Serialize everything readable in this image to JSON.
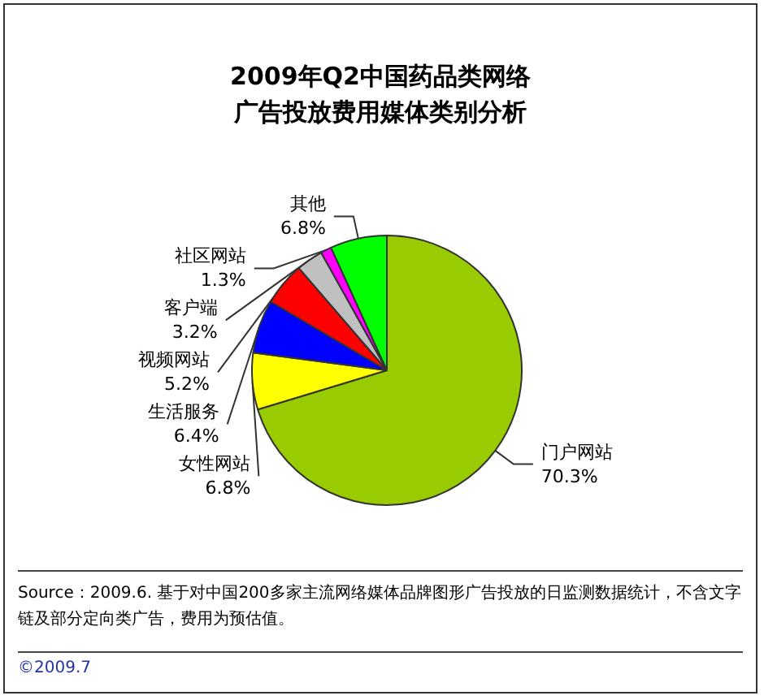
{
  "chart_data": {
    "type": "pie",
    "title": "2009年Q2中国药品类网络广告投放费用媒体类别分析",
    "categories": [
      "门户网站",
      "女性网站",
      "生活服务",
      "视频网站",
      "客户端",
      "社区网站",
      "其他"
    ],
    "values": [
      70.3,
      6.8,
      6.4,
      5.2,
      3.2,
      1.3,
      6.8
    ],
    "value_labels": [
      "70.3%",
      "6.8%",
      "6.4%",
      "5.2%",
      "3.2%",
      "1.3%",
      "6.8%"
    ],
    "colors": [
      "#99cc00",
      "#ffff00",
      "#0000ff",
      "#ff0000",
      "#c0c0c0",
      "#ff00ff",
      "#00ff00"
    ],
    "legend": false,
    "annotations": [
      "Source：2009.6. 基于对中国200多家主流网络媒体品牌图形广告投放的日监测数据统计，不含文字链及部分定向类广告，费用为预估值。",
      "©2009.7"
    ]
  }
}
